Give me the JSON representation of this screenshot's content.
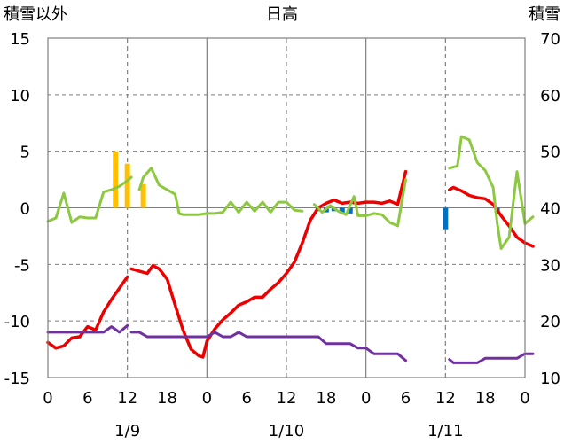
{
  "chart_data": {
    "type": "line",
    "title": "日高",
    "left_axis_label": "積雪以外",
    "right_axis_label": "積雪",
    "left_ylim": [
      -15,
      15
    ],
    "left_yticks": [
      "15",
      "10",
      "5",
      "0",
      "-5",
      "-10",
      "-15"
    ],
    "right_ylim": [
      10,
      70
    ],
    "right_yticks": [
      "70",
      "60",
      "50",
      "40",
      "30",
      "20",
      "10"
    ],
    "x_hours_range": [
      0,
      60
    ],
    "x_tick_labels": [
      "0",
      "6",
      "12",
      "18",
      "0",
      "6",
      "12",
      "18",
      "0",
      "6",
      "12",
      "18",
      "0"
    ],
    "date_labels": [
      {
        "text": "1/9",
        "hour": 10
      },
      {
        "text": "1/10",
        "hour": 30
      },
      {
        "text": "1/11",
        "hour": 50
      }
    ],
    "grid": {
      "solid_vertical_hours": [
        20,
        40
      ],
      "dashed_vertical_hours": [
        10,
        30,
        50
      ],
      "dashed_horizontal_values": [
        10,
        5,
        -5,
        -10
      ]
    },
    "colors": {
      "red": "#ee0000",
      "green": "#8cc840",
      "purple": "#7030a0",
      "orange": "#ffc000",
      "blue": "#0070c0",
      "grid": "#7f7f7f"
    },
    "series": [
      {
        "key": "red",
        "axis": "left",
        "segments": [
          [
            [
              0,
              -11.9
            ],
            [
              1,
              -12.4
            ],
            [
              2,
              -12.2
            ],
            [
              3,
              -11.5
            ],
            [
              4,
              -11.4
            ],
            [
              5,
              -10.5
            ],
            [
              6,
              -10.8
            ],
            [
              7,
              -9.2
            ],
            [
              8,
              -8.1
            ],
            [
              9,
              -7.1
            ],
            [
              10,
              -6.1
            ]
          ],
          [
            [
              10.5,
              -5.4
            ],
            [
              11.5,
              -5.6
            ],
            [
              12.5,
              -5.8
            ],
            [
              13.2,
              -5.1
            ],
            [
              14,
              -5.4
            ],
            [
              15,
              -6.3
            ],
            [
              16,
              -8.6
            ],
            [
              17,
              -10.8
            ],
            [
              18,
              -12.5
            ],
            [
              19,
              -13.1
            ],
            [
              19.5,
              -13.2
            ],
            [
              20,
              -11.8
            ],
            [
              21,
              -10.7
            ],
            [
              22,
              -9.9
            ],
            [
              23,
              -9.3
            ],
            [
              24,
              -8.6
            ],
            [
              25,
              -8.3
            ],
            [
              26,
              -7.9
            ],
            [
              27,
              -7.9
            ],
            [
              28,
              -7.2
            ],
            [
              29,
              -6.6
            ],
            [
              30,
              -5.8
            ],
            [
              31,
              -4.8
            ],
            [
              32,
              -3.1
            ],
            [
              33,
              -1.1
            ],
            [
              34,
              0
            ],
            [
              35,
              0.4
            ],
            [
              36,
              0.7
            ],
            [
              37,
              0.4
            ],
            [
              38,
              0.5
            ],
            [
              39,
              0.4
            ],
            [
              40,
              0.5
            ],
            [
              41,
              0.5
            ],
            [
              42,
              0.4
            ],
            [
              43,
              0.6
            ],
            [
              44,
              0.3
            ],
            [
              45,
              3.2
            ]
          ],
          [
            [
              50.5,
              1.6
            ],
            [
              51,
              1.8
            ],
            [
              52,
              1.5
            ],
            [
              53,
              1.1
            ],
            [
              54,
              0.9
            ],
            [
              55,
              0.8
            ],
            [
              56,
              0.3
            ],
            [
              57,
              -0.7
            ],
            [
              58,
              -1.6
            ],
            [
              59,
              -2.6
            ],
            [
              60,
              -3.1
            ],
            [
              61,
              -3.4
            ]
          ]
        ]
      },
      {
        "key": "green",
        "axis": "left",
        "segments": [
          [
            [
              0,
              -1.2
            ],
            [
              1,
              -0.9
            ],
            [
              2,
              1.3
            ],
            [
              3,
              -1.3
            ],
            [
              4,
              -0.8
            ],
            [
              5,
              -0.9
            ],
            [
              6,
              -0.9
            ],
            [
              7,
              1.4
            ],
            [
              8,
              1.6
            ],
            [
              9,
              1.9
            ],
            [
              10,
              2.4
            ],
            [
              10.5,
              2.7
            ]
          ],
          [
            [
              11.5,
              1.6
            ],
            [
              12,
              2.7
            ],
            [
              13,
              3.5
            ],
            [
              14,
              2.0
            ],
            [
              15,
              1.6
            ],
            [
              16,
              1.2
            ],
            [
              16.5,
              -0.5
            ],
            [
              17,
              -0.6
            ],
            [
              18,
              -0.6
            ],
            [
              19,
              -0.6
            ],
            [
              20,
              -0.5
            ],
            [
              21,
              -0.5
            ],
            [
              22,
              -0.4
            ],
            [
              23,
              0.5
            ],
            [
              24,
              -0.4
            ],
            [
              25,
              0.5
            ],
            [
              26,
              -0.3
            ],
            [
              27,
              0.5
            ],
            [
              28,
              -0.4
            ],
            [
              29,
              0.5
            ],
            [
              30,
              0.5
            ],
            [
              31,
              -0.2
            ],
            [
              32,
              -0.3
            ]
          ],
          [
            [
              33.5,
              0.3
            ],
            [
              34.5,
              -0.4
            ],
            [
              35.5,
              0.2
            ],
            [
              36.5,
              -0.3
            ],
            [
              37.5,
              -0.6
            ],
            [
              38.5,
              1.0
            ],
            [
              39,
              -0.7
            ],
            [
              40,
              -0.7
            ],
            [
              41,
              -0.5
            ],
            [
              42,
              -0.6
            ],
            [
              43,
              -1.3
            ],
            [
              44,
              -1.6
            ],
            [
              45,
              2.5
            ]
          ],
          [
            [
              50.5,
              3.5
            ],
            [
              51.5,
              3.7
            ],
            [
              52,
              6.3
            ],
            [
              53,
              6.0
            ],
            [
              54,
              4.0
            ],
            [
              55,
              3.3
            ],
            [
              56,
              1.8
            ],
            [
              56.5,
              -1.3
            ],
            [
              57,
              -3.6
            ],
            [
              58,
              -2.6
            ],
            [
              59,
              3.2
            ],
            [
              60,
              -1.4
            ],
            [
              61,
              -0.8
            ]
          ]
        ]
      },
      {
        "key": "purple",
        "axis": "left",
        "segments": [
          [
            [
              0,
              -11.0
            ],
            [
              1,
              -11.0
            ],
            [
              2,
              -11.0
            ],
            [
              3,
              -11.0
            ],
            [
              4,
              -11.0
            ],
            [
              5,
              -11.0
            ],
            [
              6,
              -11.0
            ],
            [
              7,
              -11.0
            ],
            [
              8,
              -10.5
            ],
            [
              9,
              -11.0
            ],
            [
              10,
              -10.4
            ]
          ],
          [
            [
              10.5,
              -11.0
            ],
            [
              11.5,
              -11.0
            ],
            [
              12.5,
              -11.4
            ],
            [
              13.5,
              -11.4
            ],
            [
              20,
              -11.4
            ],
            [
              21,
              -11.0
            ],
            [
              22,
              -11.4
            ],
            [
              23,
              -11.4
            ],
            [
              24,
              -11.0
            ],
            [
              25,
              -11.4
            ],
            [
              34,
              -11.4
            ],
            [
              35,
              -12.0
            ],
            [
              38,
              -12.0
            ],
            [
              39,
              -12.4
            ],
            [
              40,
              -12.4
            ],
            [
              41,
              -12.9
            ],
            [
              44,
              -12.9
            ],
            [
              45,
              -13.5
            ]
          ],
          [
            [
              50.5,
              -13.4
            ],
            [
              51,
              -13.7
            ],
            [
              54,
              -13.7
            ],
            [
              55,
              -13.3
            ],
            [
              59,
              -13.3
            ],
            [
              60,
              -12.9
            ],
            [
              61,
              -12.9
            ]
          ]
        ]
      }
    ],
    "bars": [
      {
        "key": "orange",
        "axis": "left",
        "items": [
          [
            8.5,
            5.0
          ],
          [
            10,
            3.9
          ],
          [
            12,
            2.1
          ]
        ]
      },
      {
        "key": "blue",
        "axis": "left",
        "items": [
          [
            34,
            -0.3
          ],
          [
            35,
            -0.4
          ],
          [
            36,
            -0.3
          ],
          [
            37,
            -0.5
          ],
          [
            38,
            -0.5
          ],
          [
            50,
            -1.9
          ],
          [
            56.5,
            -0.4
          ]
        ]
      }
    ]
  }
}
